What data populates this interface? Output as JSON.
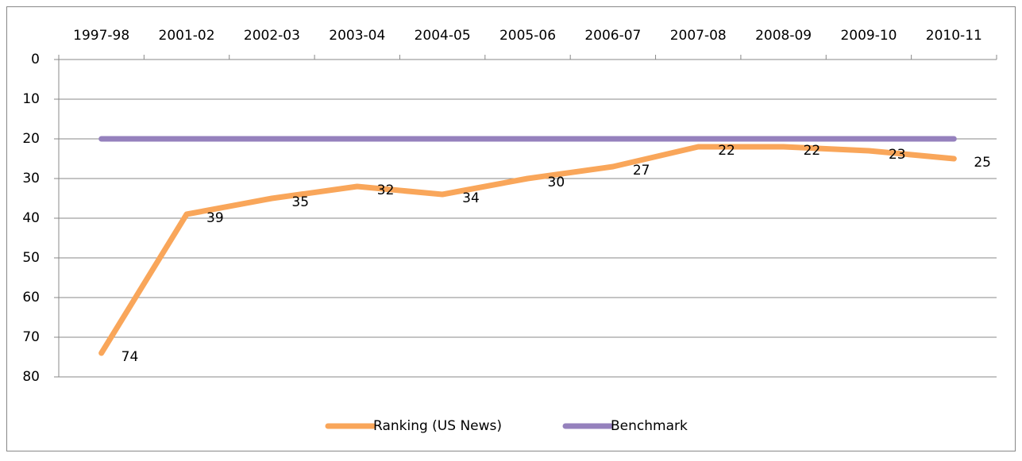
{
  "chart_data": {
    "type": "line",
    "categories": [
      "1997-98",
      "2001-02",
      "2002-03",
      "2003-04",
      "2004-05",
      "2005-06",
      "2006-07",
      "2007-08",
      "2008-09",
      "2009-10",
      "2010-11"
    ],
    "series": [
      {
        "name": "Ranking (US News)",
        "color": "#f9a65a",
        "values": [
          74,
          39,
          35,
          32,
          34,
          30,
          27,
          22,
          22,
          23,
          25
        ],
        "data_labels": true
      },
      {
        "name": "Benchmark",
        "color": "#9581bd",
        "values": [
          20,
          20,
          20,
          20,
          20,
          20,
          20,
          20,
          20,
          20,
          20
        ],
        "data_labels": false
      }
    ],
    "ylim": [
      0,
      80
    ],
    "yticks": [
      0,
      10,
      20,
      30,
      40,
      50,
      60,
      70,
      80
    ],
    "y_inverted": true,
    "grid": true,
    "legend": "bottom"
  }
}
